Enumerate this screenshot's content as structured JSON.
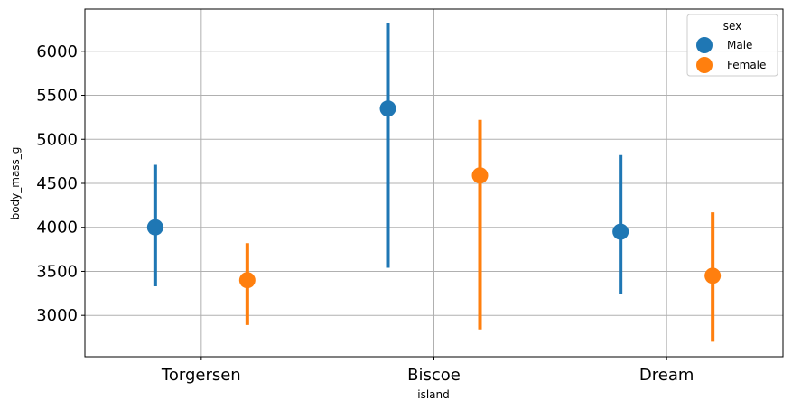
{
  "chart_data": {
    "type": "point",
    "xlabel": "island",
    "ylabel": "body_mass_g",
    "categories": [
      "Torgersen",
      "Biscoe",
      "Dream"
    ],
    "y_ticks": [
      "3000",
      "3500",
      "4000",
      "4500",
      "5000",
      "5500",
      "6000"
    ],
    "ylim": [
      2530,
      6480
    ],
    "grid": true,
    "legend": {
      "title": "sex",
      "placement": "top-right"
    },
    "series": [
      {
        "name": "Male",
        "color": "#1f77b4",
        "values": [
          4000,
          5350,
          3950
        ],
        "ci_low": [
          3330,
          3540,
          3240
        ],
        "ci_high": [
          4710,
          6320,
          4820
        ]
      },
      {
        "name": "Female",
        "color": "#ff7f0e",
        "values": [
          3400,
          4590,
          3450
        ],
        "ci_low": [
          2890,
          2840,
          2700
        ],
        "ci_high": [
          3820,
          5220,
          4170
        ]
      }
    ]
  }
}
